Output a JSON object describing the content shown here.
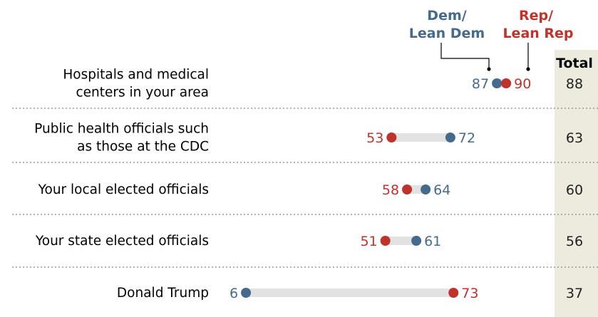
{
  "legend": {
    "dem_line1": "Dem/",
    "dem_line2": "Lean Dem",
    "rep_line1": "Rep/",
    "rep_line2": "Lean Rep"
  },
  "total_header": "Total",
  "colors": {
    "dem": "#456a8c",
    "rep": "#c0332b",
    "bar": "#e2e2e2",
    "total_bg": "#ecebdd",
    "divider": "#9a9a9a"
  },
  "chart_data": {
    "type": "dot",
    "categories": [
      [
        "Hospitals and medical",
        "centers in your area"
      ],
      [
        "Public health officials such",
        "as those at the CDC"
      ],
      [
        "Your local elected officials"
      ],
      [
        "Your state elected officials"
      ],
      [
        "Donald Trump"
      ]
    ],
    "series": [
      {
        "name": "Dem/Lean Dem",
        "values": [
          87,
          72,
          64,
          61,
          6
        ]
      },
      {
        "name": "Rep/Lean Rep",
        "values": [
          90,
          53,
          58,
          51,
          73
        ]
      }
    ],
    "totals": [
      88,
      63,
      60,
      56,
      37
    ]
  }
}
